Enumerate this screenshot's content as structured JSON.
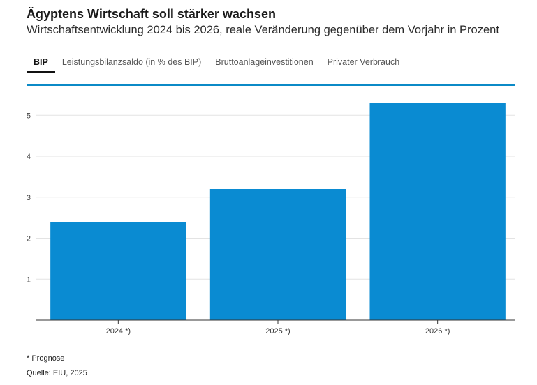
{
  "header": {
    "title": "Ägyptens Wirtschaft soll stärker wachsen",
    "subtitle": "Wirtschaftsentwicklung 2024 bis 2026, reale Veränderung gegenüber dem Vorjahr in Prozent"
  },
  "tabs": [
    {
      "label": "BIP",
      "active": true
    },
    {
      "label": "Leistungsbilanzsaldo (in % des BIP)",
      "active": false
    },
    {
      "label": "Bruttoanlageinvestitionen",
      "active": false
    },
    {
      "label": "Privater Verbrauch",
      "active": false
    }
  ],
  "colors": {
    "bar": "#0a8bd2",
    "accent": "#0b8ac7",
    "grid": "#e3e3e3",
    "axis": "#333333"
  },
  "chart_data": {
    "type": "bar",
    "categories": [
      "2024 *)",
      "2025 *)",
      "2026 *)"
    ],
    "values": [
      2.4,
      3.2,
      5.3
    ],
    "ylim": [
      0,
      5.6
    ],
    "yticks": [
      1,
      2,
      3,
      4,
      5
    ],
    "grid": true,
    "title": "",
    "xlabel": "",
    "ylabel": ""
  },
  "footer": {
    "note": "* Prognose",
    "source": "Quelle: EIU, 2025"
  }
}
